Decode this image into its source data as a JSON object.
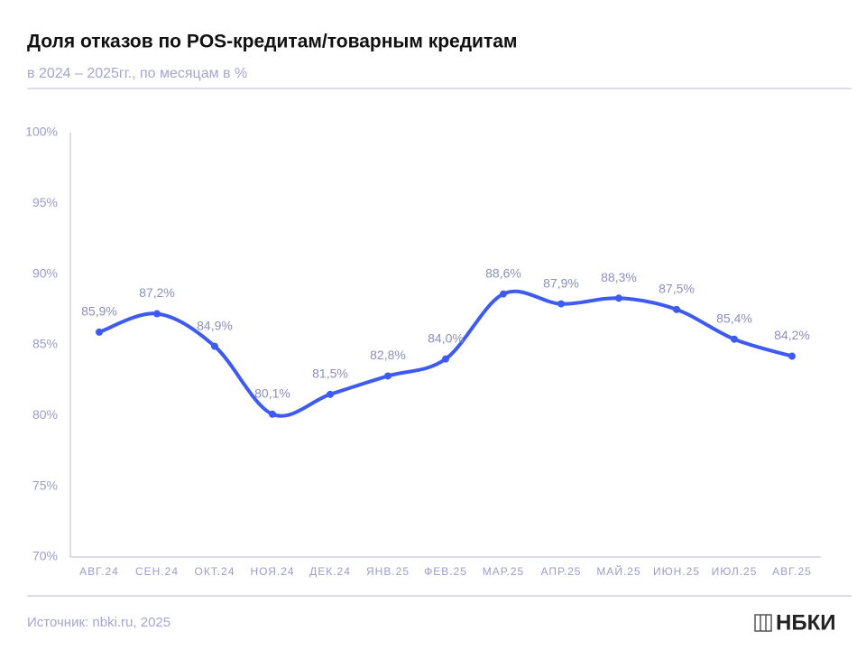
{
  "chart_data": {
    "type": "line",
    "title": "Доля отказов по POS-кредитам/товарным кредитам",
    "subtitle": "в 2024 – 2025гг., по месяцам в %",
    "categories": [
      "АВГ.24",
      "СЕН.24",
      "ОКТ.24",
      "НОЯ.24",
      "ДЕК.24",
      "ЯНВ.25",
      "ФЕВ.25",
      "МАР.25",
      "АПР.25",
      "МАЙ.25",
      "ИЮН.25",
      "ИЮЛ.25",
      "АВГ.25"
    ],
    "series": [
      {
        "color": "#3d5af1",
        "values": [
          85.9,
          87.2,
          84.9,
          80.1,
          81.5,
          82.8,
          84.0,
          88.6,
          87.9,
          88.3,
          87.5,
          85.4,
          84.2
        ],
        "value_labels": [
          "85,9%",
          "87,2%",
          "84,9%",
          "80,1%",
          "81,5%",
          "82,8%",
          "84,0%",
          "88,6%",
          "87,9%",
          "88,3%",
          "87,5%",
          "85,4%",
          "84,2%"
        ]
      }
    ],
    "ylim": [
      70,
      100
    ],
    "yticks": [
      {
        "value": 70,
        "label": "70%"
      },
      {
        "value": 75,
        "label": "75%"
      },
      {
        "value": 80,
        "label": "80%"
      },
      {
        "value": 85,
        "label": "85%"
      },
      {
        "value": 90,
        "label": "90%"
      },
      {
        "value": 95,
        "label": "95%"
      },
      {
        "value": 100,
        "label": "100%"
      }
    ],
    "source": "Источник: nbki.ru, 2025",
    "logo": "НБКИ"
  }
}
